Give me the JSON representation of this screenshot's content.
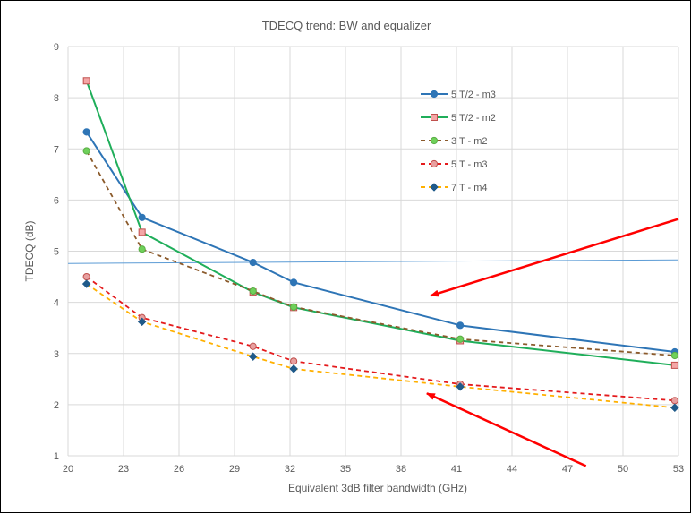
{
  "chart_data": {
    "type": "line",
    "title": "TDECQ trend: BW and equalizer",
    "xlabel": "Equivalent 3dB filter bandwidth (GHz)",
    "ylabel": "TDECQ (dB)",
    "xlim": [
      20,
      53
    ],
    "ylim": [
      1,
      9
    ],
    "xticks": [
      "20",
      "23",
      "26",
      "29",
      "32",
      "35",
      "38",
      "41",
      "44",
      "47",
      "50",
      "53"
    ],
    "yticks": [
      "1",
      "2",
      "3",
      "4",
      "5",
      "6",
      "7",
      "8",
      "9"
    ],
    "x": [
      21,
      24,
      30,
      32.2,
      41.2,
      52.8
    ],
    "grid": true,
    "legend_position": "top-center",
    "series": [
      {
        "name": "5 T/2 - m3",
        "values": [
          7.33,
          5.66,
          4.78,
          4.39,
          3.55,
          3.03
        ],
        "color": "#2E75B6",
        "dash": "solid",
        "marker": "circle"
      },
      {
        "name": "5 T/2 - m2",
        "values": [
          8.33,
          5.37,
          4.2,
          3.9,
          3.25,
          2.77
        ],
        "color": "#1FAE5A",
        "dash": "solid",
        "marker": "square"
      },
      {
        "name": "3 T - m2",
        "values": [
          6.96,
          5.04,
          4.22,
          3.91,
          3.28,
          2.96
        ],
        "color": "#8B5A2B",
        "dash": "dashed",
        "marker": "circle",
        "marker_color": "#6FD05A"
      },
      {
        "name": "5 T - m3",
        "values": [
          4.5,
          3.7,
          3.14,
          2.85,
          2.4,
          2.08
        ],
        "color": "#E41A1C",
        "dash": "dashed",
        "marker": "circle",
        "marker_color": "#E8A0A0"
      },
      {
        "name": "7 T - m4",
        "values": [
          4.36,
          3.62,
          2.94,
          2.7,
          2.35,
          1.94
        ],
        "color": "#FFB000",
        "dash": "dashed",
        "marker": "diamond",
        "marker_color": "#1F5A8A"
      }
    ],
    "reference_line": {
      "x": [
        20,
        53
      ],
      "y": [
        4.76,
        4.83
      ],
      "color": "#5B9BD5"
    },
    "annotation_arrows": [
      {
        "color": "#FF0000",
        "from": [
          53,
          5.63
        ],
        "to": [
          39.6,
          4.13
        ]
      },
      {
        "color": "#FF0000",
        "from": [
          48,
          0.8
        ],
        "to": [
          39.4,
          2.22
        ]
      }
    ]
  }
}
